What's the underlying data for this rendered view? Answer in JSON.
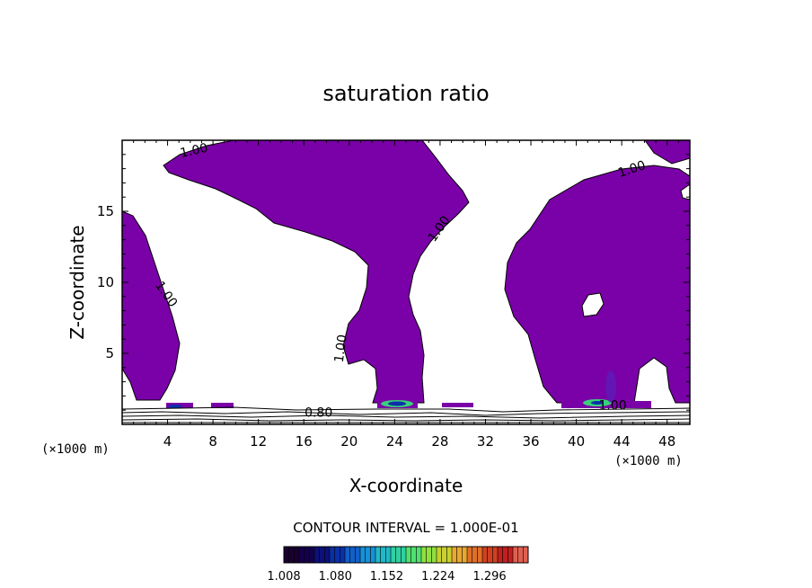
{
  "chart_data": {
    "type": "contour",
    "title": "saturation ratio",
    "xlabel": "X-coordinate",
    "ylabel": "Z-coordinate",
    "x_units": "(×1000 m)",
    "x_units_right": "(×1000 m)",
    "xlim": [
      0,
      50
    ],
    "ylim": [
      0,
      20
    ],
    "x_ticks": [
      4,
      8,
      12,
      16,
      20,
      24,
      28,
      32,
      36,
      40,
      44,
      48
    ],
    "y_ticks": [
      5,
      10,
      15
    ],
    "fill_threshold": 1.0,
    "fill_color": "#7a00a8",
    "contour_labels": [
      {
        "text": "1.00",
        "x": 6.4,
        "z": 19.0,
        "angle": -12
      },
      {
        "text": "1.00",
        "x": 45.0,
        "z": 17.7,
        "angle": -18
      },
      {
        "text": "1.00",
        "x": 28.2,
        "z": 13.6,
        "angle": -55
      },
      {
        "text": "1.00",
        "x": 3.6,
        "z": 9.0,
        "angle": 55
      },
      {
        "text": "1.00",
        "x": 19.6,
        "z": 5.3,
        "angle": -82
      },
      {
        "text": "1.00",
        "x": 43.2,
        "z": 1.05,
        "angle": 0
      },
      {
        "text": "0.80",
        "x": 17.3,
        "z": 0.55,
        "angle": 0
      }
    ],
    "contour_interval_text": "CONTOUR INTERVAL = 1.000E-01",
    "colorbar": {
      "min": 1.008,
      "max": 1.35,
      "tick_labels": [
        "1.008",
        "1.080",
        "1.152",
        "1.224",
        "1.296"
      ],
      "colors": [
        "#1a0030",
        "#14004a",
        "#0c1078",
        "#0a30a8",
        "#1060c8",
        "#1890d8",
        "#20b8c8",
        "#30d0a0",
        "#50e070",
        "#90e040",
        "#c8d030",
        "#e8a830",
        "#e07028",
        "#d04020",
        "#c02020",
        "#e06050"
      ]
    }
  }
}
